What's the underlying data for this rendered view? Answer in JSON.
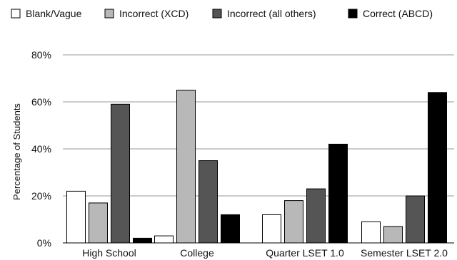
{
  "chart_data": {
    "type": "bar",
    "title": "",
    "xlabel": "",
    "ylabel": "Percentage of Students",
    "ylim": [
      0,
      80
    ],
    "yticks": [
      0,
      20,
      40,
      60,
      80
    ],
    "ytick_labels": [
      "0%",
      "20%",
      "40%",
      "60%",
      "80%"
    ],
    "grid": true,
    "legend_position": "top",
    "categories": [
      "High School",
      "College",
      "Quarter LSET 1.0",
      "Semester LSET 2.0"
    ],
    "series": [
      {
        "name": "Blank/Vague",
        "color": "#ffffff",
        "values": [
          22,
          3,
          12,
          9
        ]
      },
      {
        "name": "Incorrect (XCD)",
        "color": "#b8b8b8",
        "values": [
          17,
          65,
          18,
          7
        ]
      },
      {
        "name": "Incorrect (all others)",
        "color": "#555555",
        "values": [
          59,
          35,
          23,
          20
        ]
      },
      {
        "name": "Correct (ABCD)",
        "color": "#000000",
        "values": [
          2,
          12,
          42,
          64
        ]
      }
    ]
  }
}
